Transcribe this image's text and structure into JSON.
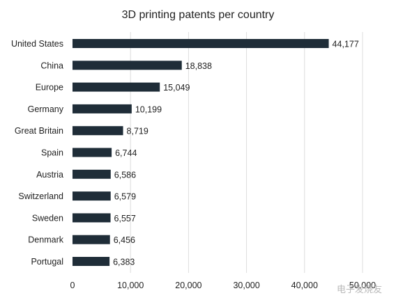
{
  "chart_data": {
    "type": "bar",
    "orientation": "horizontal",
    "title": "3D printing patents per country",
    "categories": [
      "United States",
      "China",
      "Europe",
      "Germany",
      "Great Britain",
      "Spain",
      "Austria",
      "Switzerland",
      "Sweden",
      "Denmark",
      "Portugal"
    ],
    "values": [
      44177,
      18838,
      15049,
      10199,
      8719,
      6744,
      6586,
      6579,
      6557,
      6456,
      6383
    ],
    "value_labels": [
      "44,177",
      "18,838",
      "15,049",
      "10,199",
      "8,719",
      "6,744",
      "6,586",
      "6,579",
      "6,557",
      "6,456",
      "6,383"
    ],
    "x_ticks": [
      0,
      10000,
      20000,
      30000,
      40000,
      50000
    ],
    "x_tick_labels": [
      "0",
      "10,000",
      "20,000",
      "30,000",
      "40,000",
      "50,000"
    ],
    "xlim": [
      0,
      50000
    ],
    "xlabel": "",
    "ylabel": "",
    "grid": "vertical",
    "legend": "none",
    "colors": {
      "bar": "#1f2d38",
      "grid": "#dcdcdc",
      "text": "#1f1f1f"
    }
  },
  "watermark": "电子发烧友"
}
